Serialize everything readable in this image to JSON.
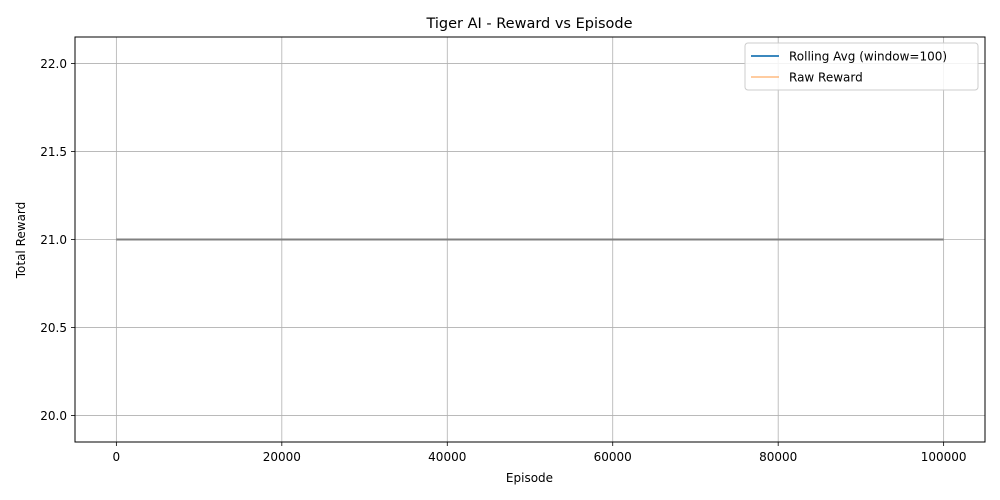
{
  "chart_data": {
    "type": "line",
    "title": "Tiger AI - Reward vs Episode",
    "xlabel": "Episode",
    "ylabel": "Total Reward",
    "xlim": [
      -5000,
      105000
    ],
    "ylim": [
      19.85,
      22.15
    ],
    "xticks": [
      0,
      20000,
      40000,
      60000,
      80000,
      100000
    ],
    "xtick_labels": [
      "0",
      "20000",
      "40000",
      "60000",
      "80000",
      "100000"
    ],
    "yticks": [
      20.0,
      20.5,
      21.0,
      21.5,
      22.0
    ],
    "ytick_labels": [
      "20.0",
      "20.5",
      "21.0",
      "21.5",
      "22.0"
    ],
    "grid": true,
    "legend_position": "top-right",
    "series": [
      {
        "name": "Rolling Avg (window=100)",
        "color": "#1f77b4",
        "opacity": 1,
        "x": [
          0,
          100000
        ],
        "y": [
          21.0,
          21.0
        ]
      },
      {
        "name": "Raw Reward",
        "color": "#ff7f0e",
        "opacity": 0.45,
        "x": [
          0,
          100000
        ],
        "y": [
          21.0,
          21.0
        ]
      }
    ],
    "overlap_line_color": "#808080"
  }
}
